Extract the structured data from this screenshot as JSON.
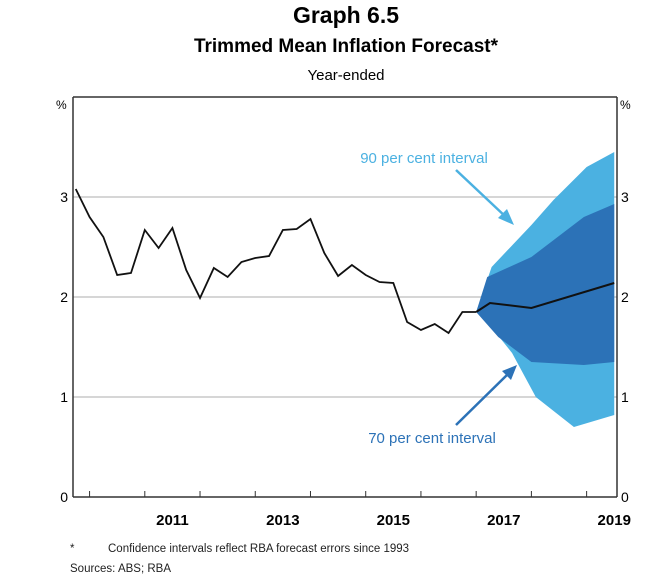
{
  "chart_data": {
    "type": "line",
    "title": "Graph 6.5",
    "subtitle": "Trimmed Mean Inflation Forecast*",
    "unit_note": "Year-ended",
    "ylabel_left": "%",
    "ylabel_right": "%",
    "ylim": [
      0,
      4
    ],
    "xlim": [
      2009.7,
      2019.55
    ],
    "yticks": [
      0,
      1,
      2,
      3
    ],
    "xticks": [
      "2011",
      "2013",
      "2015",
      "2017",
      "2019"
    ],
    "grid": true,
    "actual": {
      "x_start": 2009.75,
      "step": 0.25,
      "values": [
        3.08,
        2.8,
        2.6,
        2.22,
        2.24,
        2.67,
        2.49,
        2.69,
        2.27,
        1.99,
        2.29,
        2.2,
        2.35,
        2.39,
        2.41,
        2.67,
        2.68,
        2.78,
        2.44,
        2.21,
        2.32,
        2.22,
        2.15,
        2.14,
        1.75,
        1.67,
        1.73,
        1.64,
        1.85,
        1.85
      ]
    },
    "forecast": {
      "x": [
        2017.0,
        2017.25,
        2018.0,
        2019.5
      ],
      "values": [
        1.85,
        1.94,
        1.89,
        2.14
      ]
    },
    "interval_90": {
      "upper_x": [
        2017.0,
        2017.28,
        2018.0,
        2018.4,
        2019.75,
        2019.5
      ],
      "upper": [
        1.85,
        2.3,
        2.72,
        2.97,
        3.3,
        3.45
      ],
      "lower_x": [
        2017.0,
        2017.2,
        2017.65,
        2018.08,
        2018.77,
        2019.5
      ],
      "lower": [
        1.85,
        1.75,
        1.44,
        1.0,
        0.7,
        0.82
      ]
    },
    "interval_70": {
      "upper_x": [
        2017.0,
        2017.2,
        2018.0,
        2018.95,
        2019.5
      ],
      "upper": [
        1.85,
        2.2,
        2.4,
        2.8,
        2.93
      ],
      "lower_x": [
        2017.0,
        2017.4,
        2018.0,
        2018.95,
        2019.5
      ],
      "lower": [
        1.85,
        1.6,
        1.35,
        1.32,
        1.35
      ]
    },
    "annotations": [
      "90 per cent interval",
      "70 per cent interval"
    ],
    "colors": {
      "interval_90": "#4bb1e1",
      "interval_70": "#2c72b7",
      "line": "#111111",
      "grid": "#c8c8c8"
    }
  },
  "footnotes": {
    "marker": "*",
    "text": "Confidence intervals reflect RBA forecast errors since 1993",
    "sources": "Sources: ABS; RBA"
  }
}
